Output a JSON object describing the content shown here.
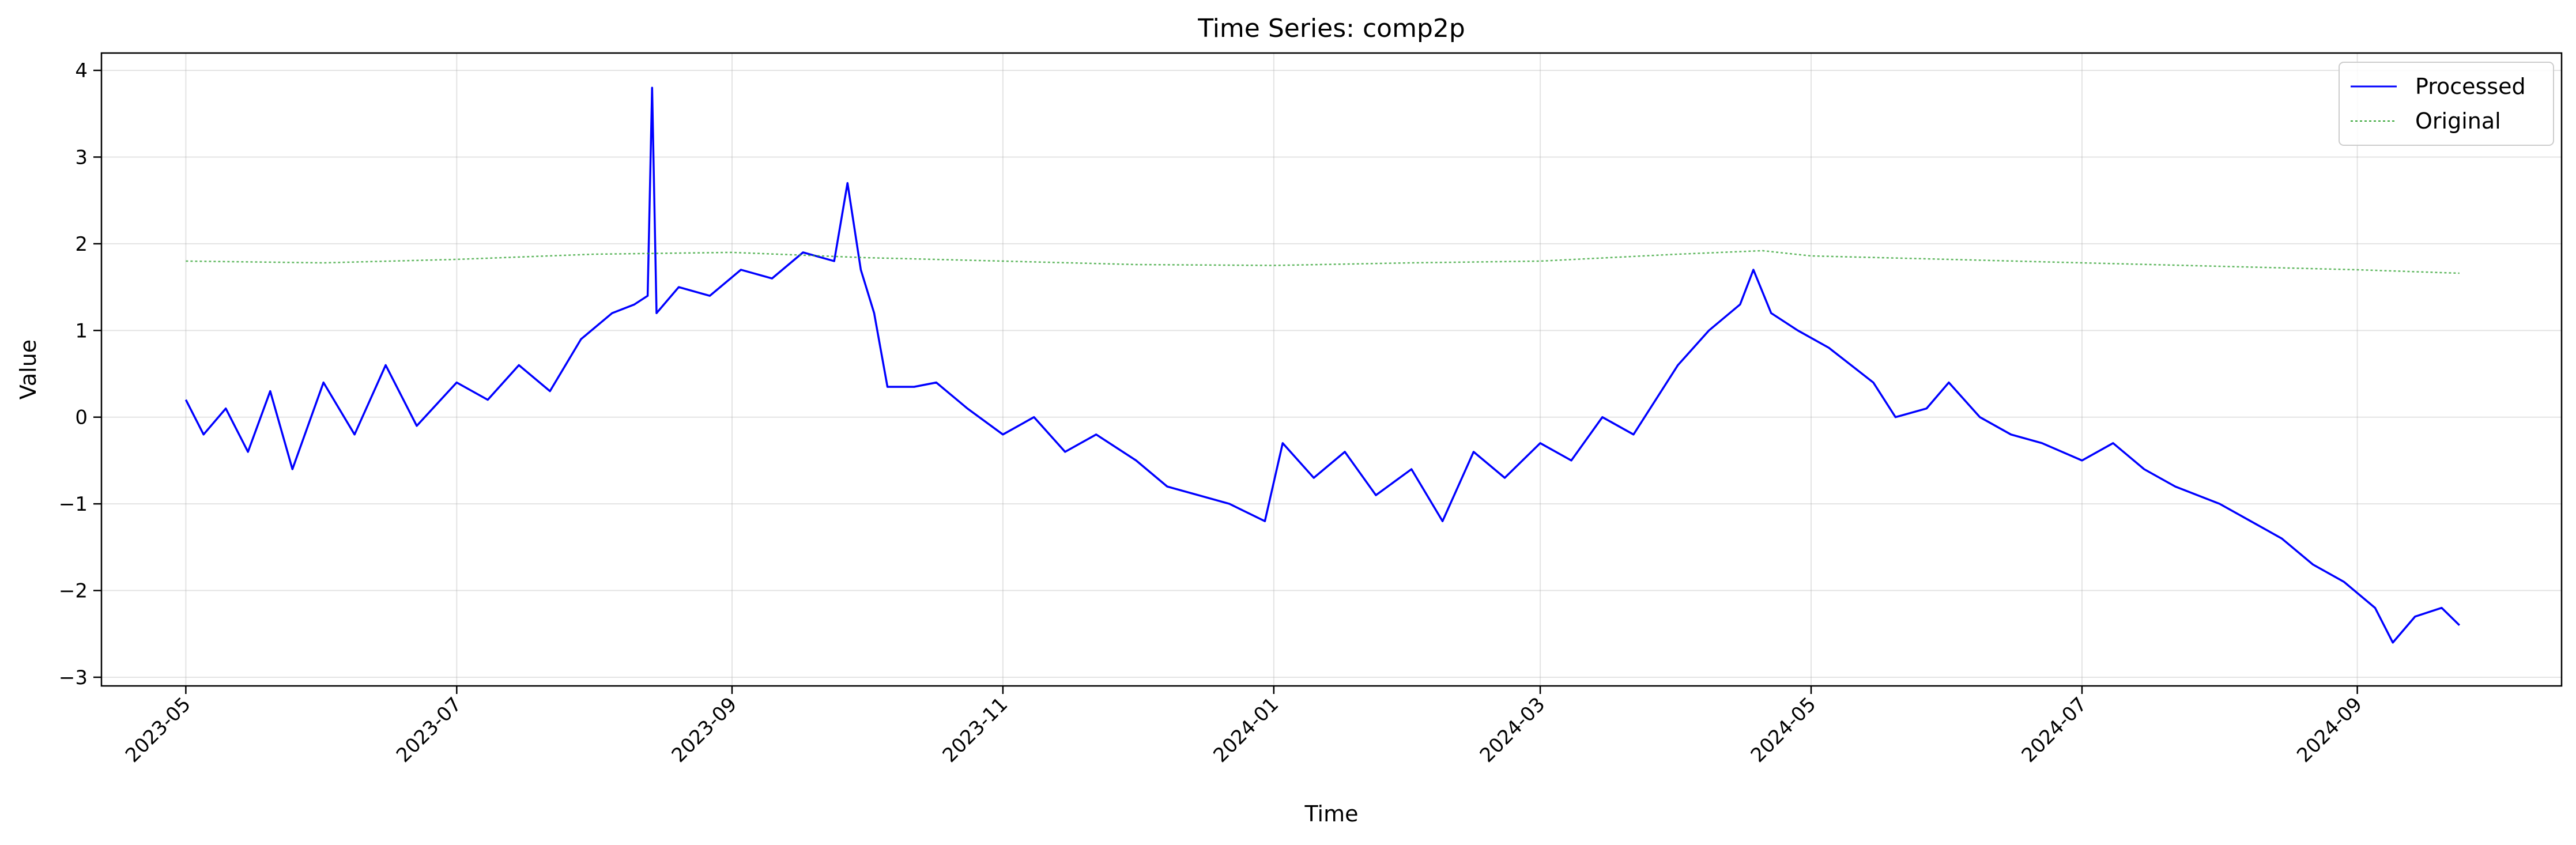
{
  "chart_data": {
    "type": "line",
    "title": "Time Series: comp2p",
    "xlabel": "Time",
    "ylabel": "Value",
    "xlim": [
      "2023-04-12",
      "2024-10-17"
    ],
    "ylim": [
      -3.1,
      4.2
    ],
    "grid": true,
    "legend_position": "top-right",
    "x_ticks": [
      "2023-05",
      "2023-07",
      "2023-09",
      "2023-11",
      "2024-01",
      "2024-03",
      "2024-05",
      "2024-07",
      "2024-09"
    ],
    "y_ticks": [
      -3,
      -2,
      -1,
      0,
      1,
      2,
      3,
      4
    ],
    "y_tick_labels": [
      "−3",
      "−2",
      "−1",
      "0",
      "1",
      "2",
      "3",
      "4"
    ],
    "series": [
      {
        "name": "Processed",
        "color": "#0000ff",
        "style": "solid",
        "points": [
          [
            "2023-05-01",
            0.2
          ],
          [
            "2023-05-05",
            -0.2
          ],
          [
            "2023-05-10",
            0.1
          ],
          [
            "2023-05-15",
            -0.4
          ],
          [
            "2023-05-20",
            0.3
          ],
          [
            "2023-05-25",
            -0.6
          ],
          [
            "2023-06-01",
            0.4
          ],
          [
            "2023-06-08",
            -0.2
          ],
          [
            "2023-06-15",
            0.6
          ],
          [
            "2023-06-22",
            -0.1
          ],
          [
            "2023-07-01",
            0.4
          ],
          [
            "2023-07-08",
            0.2
          ],
          [
            "2023-07-15",
            0.6
          ],
          [
            "2023-07-22",
            0.3
          ],
          [
            "2023-07-29",
            0.9
          ],
          [
            "2023-08-05",
            1.2
          ],
          [
            "2023-08-10",
            1.3
          ],
          [
            "2023-08-13",
            1.4
          ],
          [
            "2023-08-14",
            3.8
          ],
          [
            "2023-08-15",
            1.2
          ],
          [
            "2023-08-20",
            1.5
          ],
          [
            "2023-08-27",
            1.4
          ],
          [
            "2023-09-03",
            1.7
          ],
          [
            "2023-09-10",
            1.6
          ],
          [
            "2023-09-17",
            1.9
          ],
          [
            "2023-09-24",
            1.8
          ],
          [
            "2023-09-27",
            2.7
          ],
          [
            "2023-09-30",
            1.7
          ],
          [
            "2023-10-03",
            1.2
          ],
          [
            "2023-10-06",
            0.35
          ],
          [
            "2023-10-12",
            0.35
          ],
          [
            "2023-10-17",
            0.4
          ],
          [
            "2023-10-24",
            0.1
          ],
          [
            "2023-11-01",
            -0.2
          ],
          [
            "2023-11-08",
            0.0
          ],
          [
            "2023-11-15",
            -0.4
          ],
          [
            "2023-11-22",
            -0.2
          ],
          [
            "2023-12-01",
            -0.5
          ],
          [
            "2023-12-08",
            -0.8
          ],
          [
            "2023-12-15",
            -0.9
          ],
          [
            "2023-12-22",
            -1.0
          ],
          [
            "2023-12-30",
            -1.2
          ],
          [
            "2024-01-03",
            -0.3
          ],
          [
            "2024-01-10",
            -0.7
          ],
          [
            "2024-01-17",
            -0.4
          ],
          [
            "2024-01-24",
            -0.9
          ],
          [
            "2024-02-01",
            -0.6
          ],
          [
            "2024-02-08",
            -1.2
          ],
          [
            "2024-02-15",
            -0.4
          ],
          [
            "2024-02-22",
            -0.7
          ],
          [
            "2024-03-01",
            -0.3
          ],
          [
            "2024-03-08",
            -0.5
          ],
          [
            "2024-03-15",
            0.0
          ],
          [
            "2024-03-22",
            -0.2
          ],
          [
            "2024-04-01",
            0.6
          ],
          [
            "2024-04-08",
            1.0
          ],
          [
            "2024-04-15",
            1.3
          ],
          [
            "2024-04-18",
            1.7
          ],
          [
            "2024-04-22",
            1.2
          ],
          [
            "2024-04-28",
            1.0
          ],
          [
            "2024-05-05",
            0.8
          ],
          [
            "2024-05-15",
            0.4
          ],
          [
            "2024-05-20",
            0.0
          ],
          [
            "2024-05-27",
            0.1
          ],
          [
            "2024-06-01",
            0.4
          ],
          [
            "2024-06-08",
            0.0
          ],
          [
            "2024-06-15",
            -0.2
          ],
          [
            "2024-06-22",
            -0.3
          ],
          [
            "2024-07-01",
            -0.5
          ],
          [
            "2024-07-08",
            -0.3
          ],
          [
            "2024-07-15",
            -0.6
          ],
          [
            "2024-07-22",
            -0.8
          ],
          [
            "2024-08-01",
            -1.0
          ],
          [
            "2024-08-08",
            -1.2
          ],
          [
            "2024-08-15",
            -1.4
          ],
          [
            "2024-08-22",
            -1.7
          ],
          [
            "2024-08-29",
            -1.9
          ],
          [
            "2024-09-05",
            -2.2
          ],
          [
            "2024-09-09",
            -2.6
          ],
          [
            "2024-09-14",
            -2.3
          ],
          [
            "2024-09-20",
            -2.2
          ],
          [
            "2024-09-24",
            -2.4
          ]
        ]
      },
      {
        "name": "Original",
        "color": "#2ca02c",
        "style": "dotted",
        "points": [
          [
            "2023-05-01",
            1.8
          ],
          [
            "2023-06-01",
            1.78
          ],
          [
            "2023-07-01",
            1.82
          ],
          [
            "2023-08-01",
            1.88
          ],
          [
            "2023-09-01",
            1.9
          ],
          [
            "2023-10-01",
            1.84
          ],
          [
            "2023-11-01",
            1.8
          ],
          [
            "2023-12-01",
            1.76
          ],
          [
            "2024-01-01",
            1.75
          ],
          [
            "2024-02-01",
            1.78
          ],
          [
            "2024-03-01",
            1.8
          ],
          [
            "2024-04-01",
            1.88
          ],
          [
            "2024-04-20",
            1.92
          ],
          [
            "2024-05-01",
            1.86
          ],
          [
            "2024-06-01",
            1.82
          ],
          [
            "2024-07-01",
            1.78
          ],
          [
            "2024-08-01",
            1.74
          ],
          [
            "2024-09-01",
            1.7
          ],
          [
            "2024-09-24",
            1.66
          ]
        ]
      }
    ]
  }
}
